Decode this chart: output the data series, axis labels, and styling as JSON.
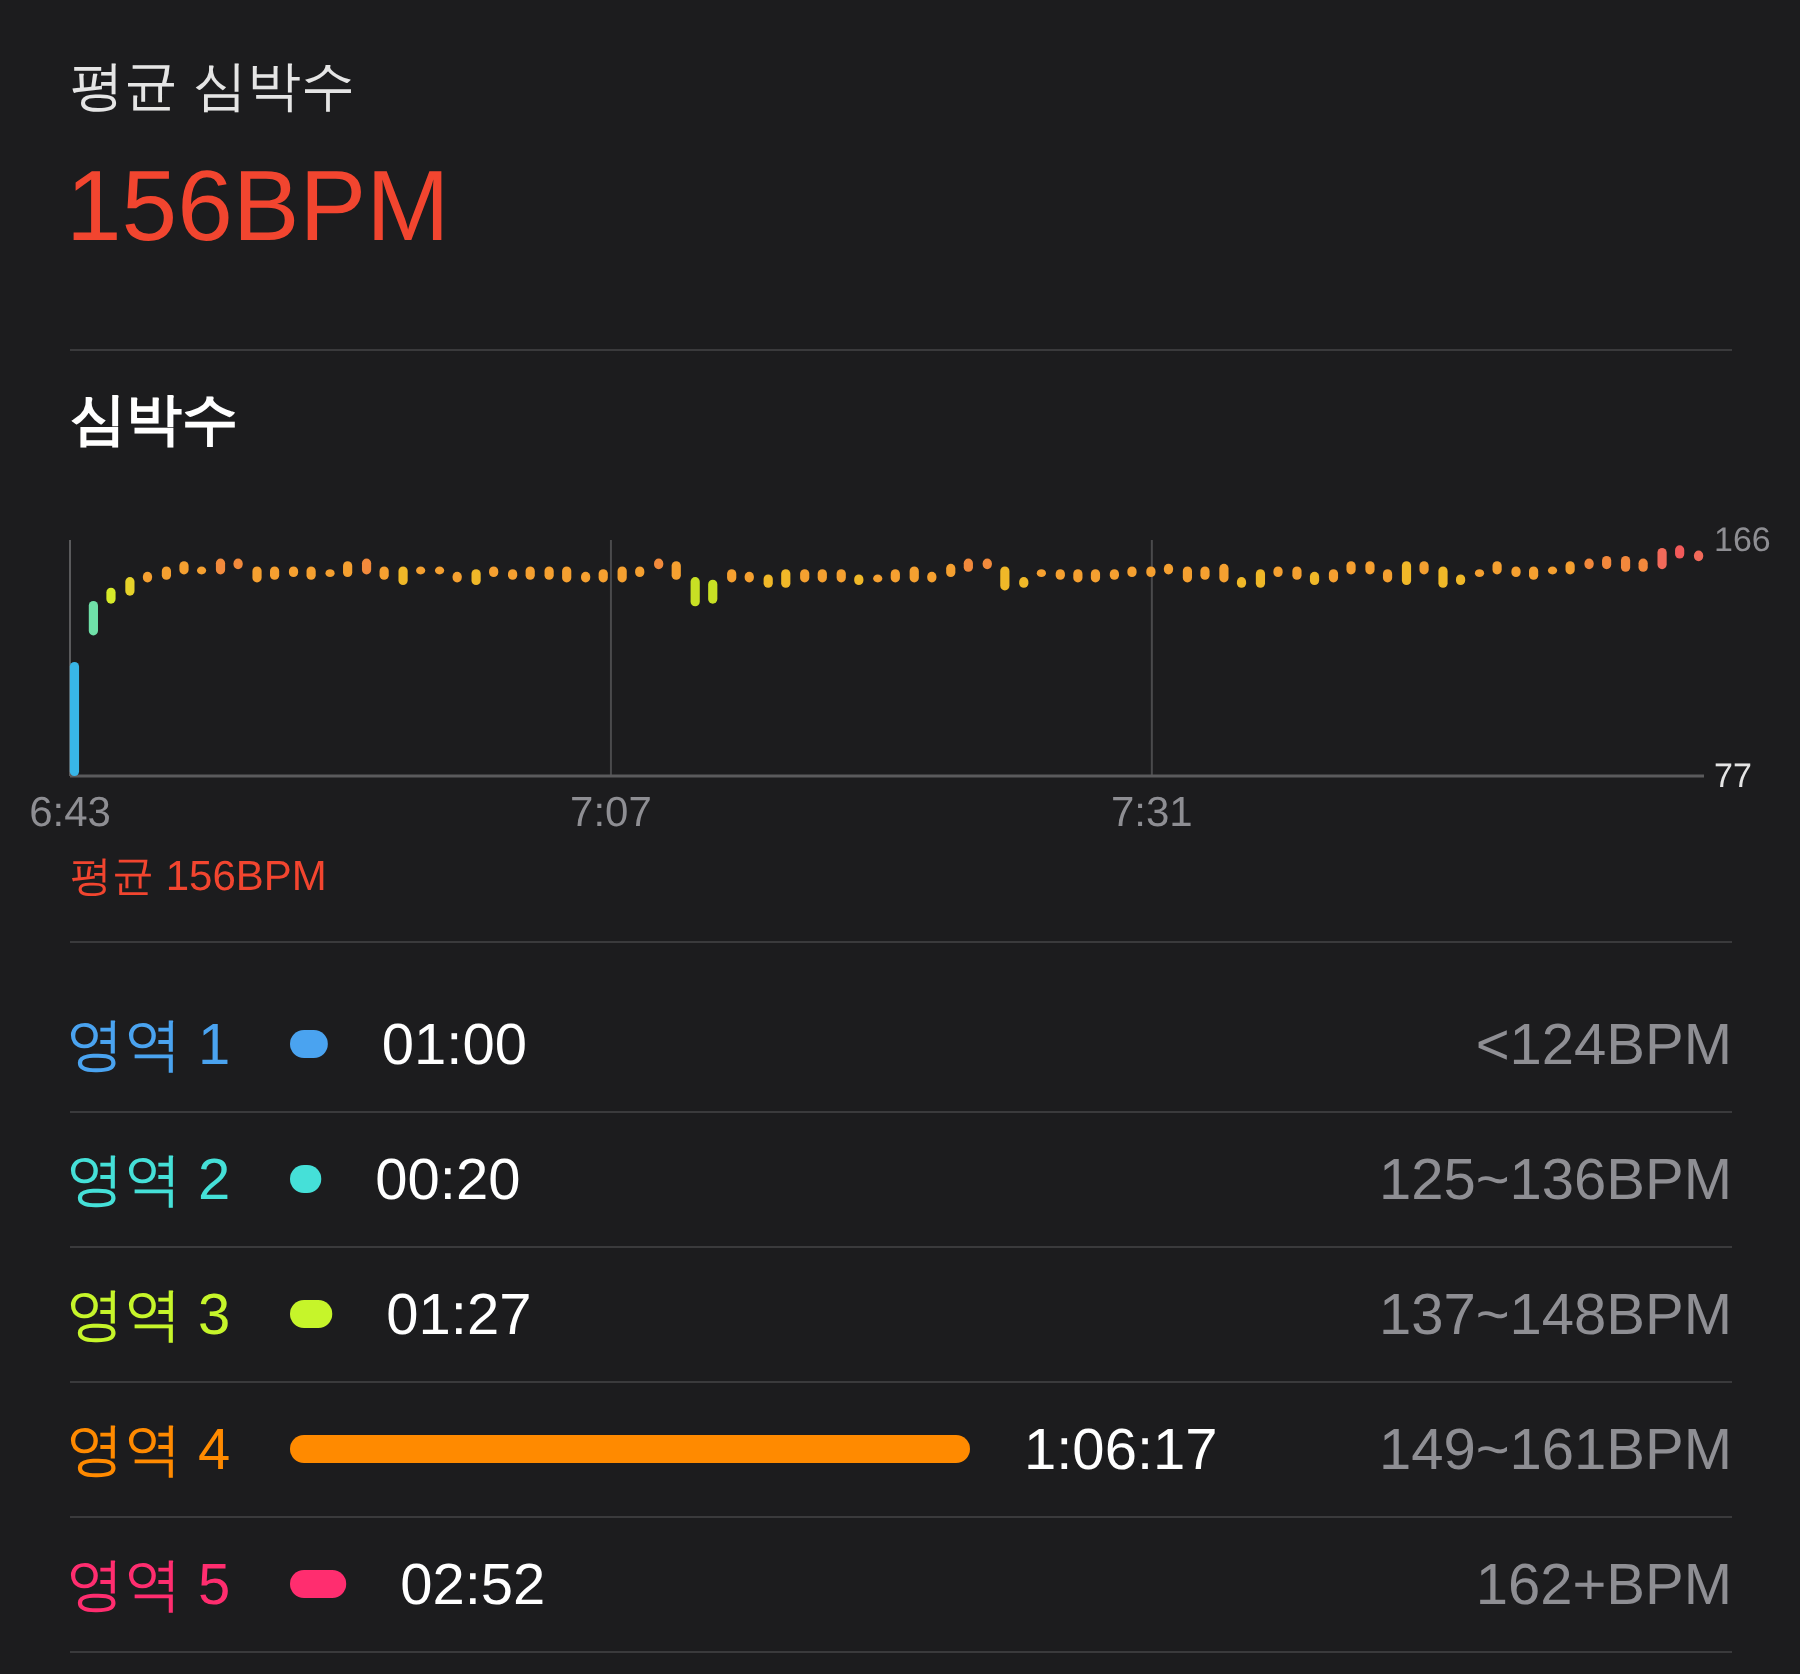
{
  "chart_data": [
    {
      "type": "other",
      "title": "평균 심박수",
      "subtitle": "156BPM"
    },
    {
      "type": "bar",
      "title": "심박수",
      "annotations": [
        "평균 156BPM"
      ],
      "x": [
        6.72,
        6.734,
        6.747,
        6.761,
        6.774,
        6.788,
        6.801,
        6.814,
        6.828,
        6.841,
        6.855,
        6.868,
        6.882,
        6.895,
        6.909,
        6.922,
        6.936,
        6.949,
        6.963,
        6.976,
        6.99,
        7.003,
        7.017,
        7.03,
        7.044,
        7.057,
        7.071,
        7.084,
        7.098,
        7.111,
        7.125,
        7.138,
        7.152,
        7.165,
        7.179,
        7.192,
        7.206,
        7.219,
        7.233,
        7.246,
        7.26,
        7.273,
        7.287,
        7.3,
        7.314,
        7.327,
        7.341,
        7.354,
        7.368,
        7.381,
        7.395,
        7.408,
        7.422,
        7.435,
        7.449,
        7.462,
        7.475,
        7.489,
        7.502,
        7.516,
        7.529,
        7.543,
        7.556,
        7.57,
        7.583,
        7.597,
        7.61,
        7.624,
        7.637,
        7.651,
        7.664,
        7.678,
        7.691,
        7.705,
        7.718,
        7.732,
        7.745,
        7.759,
        7.772,
        7.786,
        7.799,
        7.813,
        7.826,
        7.84,
        7.853,
        7.867,
        7.88,
        7.894,
        7.907,
        7.921
      ],
      "base": [
        77,
        130,
        142,
        145,
        150,
        151,
        153,
        153,
        153,
        155,
        150,
        151,
        152,
        151,
        152,
        152,
        153,
        151,
        149,
        153,
        153,
        150,
        149,
        152,
        151,
        151,
        151,
        150,
        150,
        150,
        150,
        152,
        155,
        151,
        141,
        142,
        150,
        150,
        148,
        148,
        150,
        150,
        150,
        149,
        150,
        150,
        150,
        150,
        152,
        154,
        155,
        147,
        148,
        152,
        151,
        150,
        150,
        151,
        152,
        152,
        153,
        150,
        151,
        150,
        148,
        148,
        152,
        151,
        149,
        150,
        153,
        153,
        150,
        149,
        153,
        148,
        149,
        152,
        153,
        152,
        151,
        153,
        153,
        155,
        155,
        154,
        154,
        155,
        159,
        158
      ],
      "values": [
        43,
        13,
        6,
        7,
        4,
        5,
        5,
        3,
        6,
        4,
        6,
        5,
        4,
        5,
        3,
        6,
        6,
        5,
        7,
        3,
        3,
        4,
        6,
        4,
        4,
        5,
        5,
        6,
        4,
        5,
        6,
        4,
        4,
        7,
        11,
        9,
        5,
        4,
        5,
        7,
        5,
        5,
        5,
        4,
        3,
        5,
        6,
        4,
        5,
        5,
        4,
        9,
        4,
        3,
        4,
        5,
        5,
        4,
        4,
        4,
        4,
        6,
        5,
        7,
        4,
        7,
        4,
        5,
        5,
        5,
        5,
        5,
        5,
        9,
        5,
        8,
        4,
        3,
        5,
        4,
        5,
        3,
        5,
        4,
        5,
        6,
        5,
        8,
        5,
        4
      ],
      "colors": [
        "#38b6e8",
        "#6fe0a8",
        "#d6ea2a",
        "#e6d22a",
        "#f5a030",
        "#f5a030",
        "#f5a030",
        "#f5a030",
        "#f28a3c",
        "#f28a3c",
        "#f5a030",
        "#f5a030",
        "#f5a030",
        "#f5a030",
        "#f5a030",
        "#f5a030",
        "#f28a3c",
        "#f5a030",
        "#f0b828",
        "#f5a030",
        "#f5a030",
        "#f5a030",
        "#f0b828",
        "#f5a030",
        "#f5a030",
        "#f5a030",
        "#f5a030",
        "#f5a030",
        "#f5a030",
        "#f5a030",
        "#f5a030",
        "#f5a030",
        "#f28a3c",
        "#f5a030",
        "#c8e024",
        "#c8e024",
        "#f5a030",
        "#f5a030",
        "#f0b828",
        "#f0b828",
        "#f5a030",
        "#f5a030",
        "#f5a030",
        "#f0b828",
        "#f5a030",
        "#f5a030",
        "#f5a030",
        "#f5a030",
        "#f5a030",
        "#f28a3c",
        "#f28a3c",
        "#f0b828",
        "#f0b828",
        "#f5a030",
        "#f5a030",
        "#f5a030",
        "#f5a030",
        "#f5a030",
        "#f5a030",
        "#f5a030",
        "#f5a030",
        "#f5a030",
        "#f5a030",
        "#f5a030",
        "#f0b828",
        "#f0b828",
        "#f5a030",
        "#f5a030",
        "#f0b828",
        "#f5a030",
        "#f5a030",
        "#f5a030",
        "#f5a030",
        "#f0b828",
        "#f5a030",
        "#f0b828",
        "#f0b828",
        "#f5a030",
        "#f5a030",
        "#f5a030",
        "#f5a030",
        "#f5a030",
        "#f5a030",
        "#f2883c",
        "#f2883c",
        "#f2883c",
        "#f2883c",
        "#f26a5a",
        "#f25a5a",
        "#f26a5a"
      ],
      "xlim": [
        6.7167,
        7.925
      ],
      "xticks": [
        {
          "value": 6.7167,
          "label": "6:43"
        },
        {
          "value": 7.1167,
          "label": "7:07"
        },
        {
          "value": 7.5167,
          "label": "7:31"
        }
      ],
      "ylim": [
        77,
        166
      ],
      "yticks": [
        77,
        166
      ],
      "grid": "x"
    },
    {
      "type": "bar",
      "orientation": "horizontal",
      "categories": [
        "영역 1",
        "영역 2",
        "영역 3",
        "영역 4",
        "영역 5"
      ],
      "values": [
        60,
        20,
        87,
        3977,
        172
      ],
      "colors": [
        "#4aa3f0",
        "#45e0d8",
        "#c6f52a",
        "#ff8a00",
        "#ff2d6f"
      ],
      "value_labels": [
        "01:00",
        "00:20",
        "01:27",
        "1:06:17",
        "02:52"
      ],
      "annotations": [
        "<124BPM",
        "125~136BPM",
        "137~148BPM",
        "149~161BPM",
        "162+BPM"
      ]
    }
  ]
}
